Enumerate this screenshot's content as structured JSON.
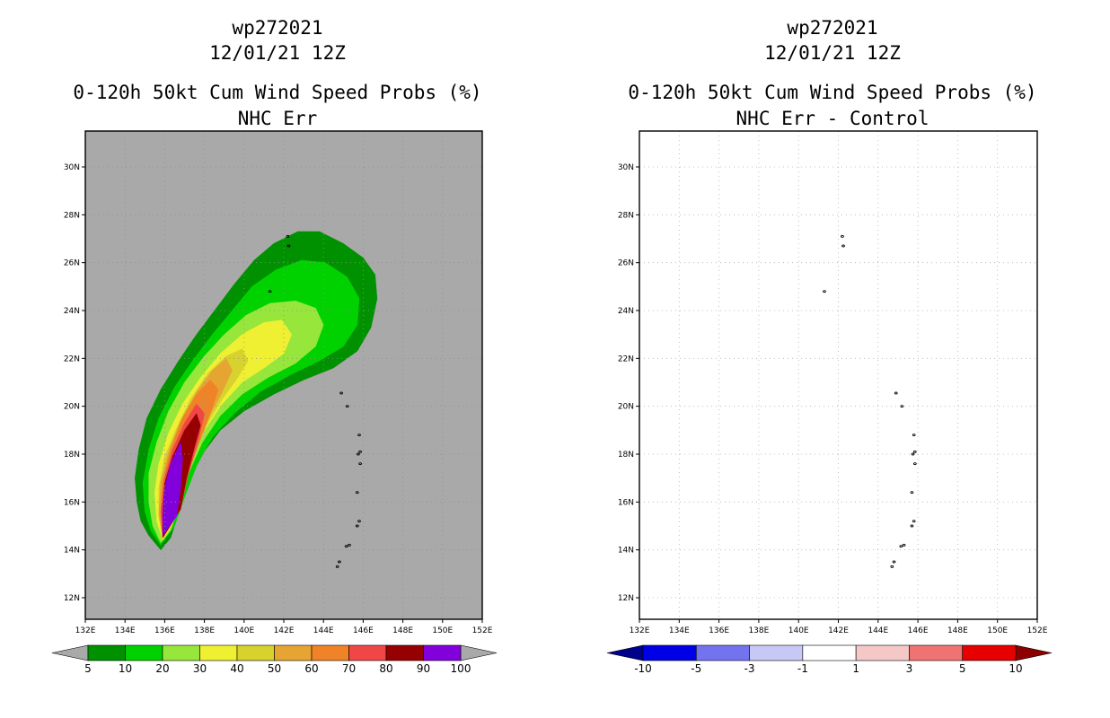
{
  "chart_data": [
    {
      "type": "heatmap",
      "storm_id": "wp272021",
      "date": "12/01/21 12Z",
      "title": "0-120h 50kt Cum Wind Speed Probs (%)",
      "subtitle": "NHC Err",
      "background": "#a9a9a9",
      "x_ticks": [
        "132E",
        "134E",
        "136E",
        "138E",
        "140E",
        "142E",
        "144E",
        "146E",
        "148E",
        "150E",
        "152E"
      ],
      "y_ticks": [
        "12N",
        "14N",
        "16N",
        "18N",
        "20N",
        "22N",
        "24N",
        "26N",
        "28N",
        "30N"
      ],
      "xlim": [
        132,
        152
      ],
      "ylim": [
        11.1,
        31.5
      ],
      "colorbar": {
        "labels": [
          "5",
          "10",
          "20",
          "30",
          "40",
          "50",
          "60",
          "70",
          "80",
          "90",
          "100"
        ],
        "colors": [
          "#009100",
          "#00d200",
          "#96e63c",
          "#f0f032",
          "#d7d22d",
          "#e6a532",
          "#f08228",
          "#f04646",
          "#960000",
          "#8200dc"
        ]
      },
      "contours": [
        {
          "level": "5-10",
          "color": "#009100",
          "points": [
            [
              135.8,
              14.0
            ],
            [
              135.2,
              14.6
            ],
            [
              134.8,
              15.2
            ],
            [
              134.6,
              16.0
            ],
            [
              134.5,
              17.0
            ],
            [
              134.7,
              18.2
            ],
            [
              135.1,
              19.5
            ],
            [
              135.8,
              20.7
            ],
            [
              136.7,
              21.9
            ],
            [
              137.6,
              23.0
            ],
            [
              138.6,
              24.1
            ],
            [
              139.5,
              25.1
            ],
            [
              140.5,
              26.1
            ],
            [
              141.5,
              26.8
            ],
            [
              142.7,
              27.3
            ],
            [
              143.8,
              27.3
            ],
            [
              145.0,
              26.8
            ],
            [
              146.0,
              26.2
            ],
            [
              146.6,
              25.5
            ],
            [
              146.7,
              24.5
            ],
            [
              146.4,
              23.3
            ],
            [
              145.7,
              22.3
            ],
            [
              144.5,
              21.6
            ],
            [
              143.0,
              21.1
            ],
            [
              141.5,
              20.5
            ],
            [
              140.0,
              19.8
            ],
            [
              138.8,
              19.0
            ],
            [
              137.8,
              17.9
            ],
            [
              137.1,
              16.6
            ],
            [
              136.6,
              15.3
            ],
            [
              136.3,
              14.5
            ]
          ]
        },
        {
          "level": "10-20",
          "color": "#00d200",
          "points": [
            [
              135.8,
              14.2
            ],
            [
              135.3,
              14.8
            ],
            [
              135.0,
              15.6
            ],
            [
              134.9,
              16.8
            ],
            [
              135.2,
              18.2
            ],
            [
              135.7,
              19.5
            ],
            [
              136.5,
              20.8
            ],
            [
              137.4,
              21.9
            ],
            [
              138.4,
              23.0
            ],
            [
              139.4,
              24.0
            ],
            [
              140.4,
              25.0
            ],
            [
              141.6,
              25.7
            ],
            [
              142.9,
              26.1
            ],
            [
              144.1,
              26.0
            ],
            [
              145.2,
              25.4
            ],
            [
              145.8,
              24.5
            ],
            [
              145.7,
              23.4
            ],
            [
              145.0,
              22.5
            ],
            [
              143.8,
              21.9
            ],
            [
              142.3,
              21.3
            ],
            [
              140.8,
              20.6
            ],
            [
              139.5,
              19.7
            ],
            [
              138.4,
              18.7
            ],
            [
              137.6,
              17.5
            ],
            [
              137.0,
              16.2
            ],
            [
              136.5,
              15.0
            ]
          ]
        },
        {
          "level": "20-30",
          "color": "#96e63c",
          "points": [
            [
              135.8,
              14.3
            ],
            [
              135.4,
              15.0
            ],
            [
              135.2,
              16.0
            ],
            [
              135.2,
              17.2
            ],
            [
              135.6,
              18.5
            ],
            [
              136.2,
              19.8
            ],
            [
              137.0,
              21.0
            ],
            [
              138.0,
              22.1
            ],
            [
              139.0,
              23.0
            ],
            [
              140.1,
              23.8
            ],
            [
              141.3,
              24.3
            ],
            [
              142.6,
              24.4
            ],
            [
              143.6,
              24.1
            ],
            [
              144.0,
              23.4
            ],
            [
              143.6,
              22.5
            ],
            [
              142.6,
              21.8
            ],
            [
              141.2,
              21.2
            ],
            [
              139.9,
              20.5
            ],
            [
              138.8,
              19.6
            ],
            [
              137.9,
              18.5
            ],
            [
              137.2,
              17.2
            ],
            [
              136.7,
              15.8
            ],
            [
              136.3,
              14.8
            ]
          ]
        },
        {
          "level": "30-40",
          "color": "#f0f032",
          "points": [
            [
              135.9,
              14.4
            ],
            [
              135.6,
              15.2
            ],
            [
              135.5,
              16.4
            ],
            [
              135.7,
              17.6
            ],
            [
              136.2,
              18.9
            ],
            [
              136.9,
              20.1
            ],
            [
              137.8,
              21.2
            ],
            [
              138.8,
              22.2
            ],
            [
              139.9,
              23.0
            ],
            [
              141.0,
              23.5
            ],
            [
              141.9,
              23.6
            ],
            [
              142.4,
              23.0
            ],
            [
              142.0,
              22.2
            ],
            [
              141.0,
              21.6
            ],
            [
              139.9,
              21.0
            ],
            [
              138.9,
              20.1
            ],
            [
              138.0,
              19.0
            ],
            [
              137.3,
              17.7
            ],
            [
              136.8,
              16.3
            ],
            [
              136.4,
              15.1
            ]
          ]
        },
        {
          "level": "40-50",
          "color": "#d7d22d",
          "points": [
            [
              135.9,
              14.5
            ],
            [
              135.7,
              15.4
            ],
            [
              135.7,
              16.6
            ],
            [
              136.0,
              17.9
            ],
            [
              136.6,
              19.1
            ],
            [
              137.3,
              20.3
            ],
            [
              138.2,
              21.4
            ],
            [
              139.1,
              22.1
            ],
            [
              139.9,
              22.4
            ],
            [
              140.2,
              21.9
            ],
            [
              139.6,
              21.1
            ],
            [
              138.9,
              20.3
            ],
            [
              138.1,
              19.2
            ],
            [
              137.4,
              17.9
            ],
            [
              136.9,
              16.5
            ],
            [
              136.5,
              15.3
            ]
          ]
        },
        {
          "level": "50-60",
          "color": "#e6a532",
          "points": [
            [
              135.9,
              14.5
            ],
            [
              135.7,
              15.5
            ],
            [
              135.8,
              16.8
            ],
            [
              136.2,
              18.1
            ],
            [
              136.8,
              19.4
            ],
            [
              137.6,
              20.6
            ],
            [
              138.4,
              21.5
            ],
            [
              139.1,
              22.0
            ],
            [
              139.4,
              21.5
            ],
            [
              138.9,
              20.6
            ],
            [
              138.2,
              19.5
            ],
            [
              137.5,
              18.2
            ],
            [
              137.0,
              16.7
            ],
            [
              136.6,
              15.4
            ]
          ]
        },
        {
          "level": "60-70",
          "color": "#f08228",
          "points": [
            [
              135.9,
              14.5
            ],
            [
              135.8,
              15.6
            ],
            [
              135.9,
              16.9
            ],
            [
              136.3,
              18.2
            ],
            [
              136.9,
              19.5
            ],
            [
              137.6,
              20.5
            ],
            [
              138.3,
              21.1
            ],
            [
              138.7,
              20.7
            ],
            [
              138.3,
              19.7
            ],
            [
              137.7,
              18.4
            ],
            [
              137.1,
              17.0
            ],
            [
              136.7,
              15.6
            ]
          ]
        },
        {
          "level": "70-80",
          "color": "#f04646",
          "points": [
            [
              135.9,
              14.5
            ],
            [
              135.8,
              15.6
            ],
            [
              136.0,
              17.0
            ],
            [
              136.4,
              18.2
            ],
            [
              137.0,
              19.3
            ],
            [
              137.6,
              20.1
            ],
            [
              138.0,
              19.7
            ],
            [
              137.7,
              18.6
            ],
            [
              137.2,
              17.2
            ],
            [
              136.8,
              15.7
            ]
          ]
        },
        {
          "level": "80-90",
          "color": "#960000",
          "points": [
            [
              135.9,
              14.5
            ],
            [
              135.9,
              15.6
            ],
            [
              136.0,
              16.8
            ],
            [
              136.4,
              17.9
            ],
            [
              137.0,
              19.0
            ],
            [
              137.6,
              19.7
            ],
            [
              137.8,
              19.2
            ],
            [
              137.5,
              18.3
            ],
            [
              137.1,
              17.0
            ],
            [
              136.8,
              15.7
            ]
          ]
        },
        {
          "level": "90-100",
          "color": "#8200dc",
          "points": [
            [
              135.9,
              14.6
            ],
            [
              135.9,
              15.6
            ],
            [
              136.0,
              16.6
            ],
            [
              136.3,
              17.6
            ],
            [
              136.8,
              18.5
            ],
            [
              136.9,
              17.8
            ],
            [
              136.8,
              16.6
            ],
            [
              136.6,
              15.4
            ]
          ]
        }
      ]
    },
    {
      "type": "heatmap",
      "storm_id": "wp272021",
      "date": "12/01/21 12Z",
      "title": "0-120h 50kt Cum Wind Speed Probs (%)",
      "subtitle": "NHC Err - Control",
      "background": "#ffffff",
      "x_ticks": [
        "132E",
        "134E",
        "136E",
        "138E",
        "140E",
        "142E",
        "144E",
        "146E",
        "148E",
        "150E",
        "152E"
      ],
      "y_ticks": [
        "12N",
        "14N",
        "16N",
        "18N",
        "20N",
        "22N",
        "24N",
        "26N",
        "28N",
        "30N"
      ],
      "xlim": [
        132,
        152
      ],
      "ylim": [
        11.1,
        31.5
      ],
      "grid": true,
      "values": "all within -1 to 1",
      "colorbar": {
        "labels": [
          "-10",
          "-5",
          "-3",
          "-1",
          "1",
          "3",
          "5",
          "10"
        ],
        "colors": [
          "#0000e6",
          "#7373f0",
          "#c8c8f5",
          "#ffffff",
          "#f5c8c8",
          "#f07373",
          "#e60000"
        ],
        "end_colors": [
          "#00008c",
          "#8c0000"
        ]
      }
    }
  ],
  "islands": [
    [
      142.2,
      27.1
    ],
    [
      142.25,
      26.7
    ],
    [
      141.3,
      24.8
    ],
    [
      144.9,
      20.55
    ],
    [
      145.2,
      20.0
    ],
    [
      145.8,
      18.8
    ],
    [
      145.85,
      18.1
    ],
    [
      145.75,
      18.0
    ],
    [
      145.85,
      17.6
    ],
    [
      145.7,
      16.4
    ],
    [
      145.8,
      15.2
    ],
    [
      145.7,
      15.0
    ],
    [
      145.3,
      14.2
    ],
    [
      145.15,
      14.15
    ],
    [
      144.8,
      13.5
    ],
    [
      144.7,
      13.3
    ]
  ]
}
